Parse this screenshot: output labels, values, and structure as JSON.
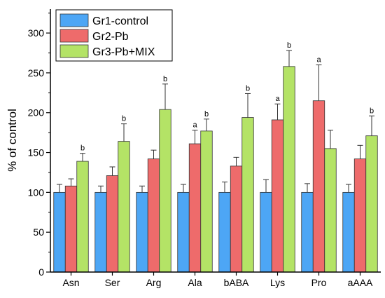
{
  "chart_data": {
    "type": "bar",
    "title": "",
    "xlabel": "",
    "ylabel": "% of control",
    "ylim": [
      0,
      330
    ],
    "yticks": [
      0,
      50,
      100,
      150,
      200,
      250,
      300
    ],
    "categories": [
      "Asn",
      "Ser",
      "Arg",
      "Ala",
      "bABA",
      "Lys",
      "Pro",
      "aAAA"
    ],
    "legend_position": "top-left",
    "series": [
      {
        "name": "Gr1-control",
        "color": "#4da6f5",
        "values": [
          100,
          100,
          100,
          100,
          100,
          100,
          100,
          100
        ],
        "errors": [
          10,
          8,
          8,
          10,
          13,
          16,
          11,
          10
        ],
        "sig": [
          "",
          "",
          "",
          "",
          "",
          "",
          "",
          ""
        ]
      },
      {
        "name": "Gr2-Pb",
        "color": "#ee6b6b",
        "values": [
          108,
          121,
          142,
          161,
          133,
          191,
          215,
          142
        ],
        "errors": [
          9,
          11,
          11,
          17,
          11,
          20,
          45,
          17
        ],
        "sig": [
          "",
          "",
          "",
          "a",
          "",
          "a",
          "a",
          ""
        ]
      },
      {
        "name": "Gr3-Pb+MIX",
        "color": "#b4e366",
        "values": [
          139,
          164,
          204,
          177,
          194,
          258,
          155,
          171
        ],
        "errors": [
          10,
          22,
          32,
          15,
          30,
          20,
          23,
          25
        ],
        "sig": [
          "b",
          "b",
          "b",
          "b",
          "b",
          "b",
          "",
          "b"
        ]
      }
    ]
  }
}
